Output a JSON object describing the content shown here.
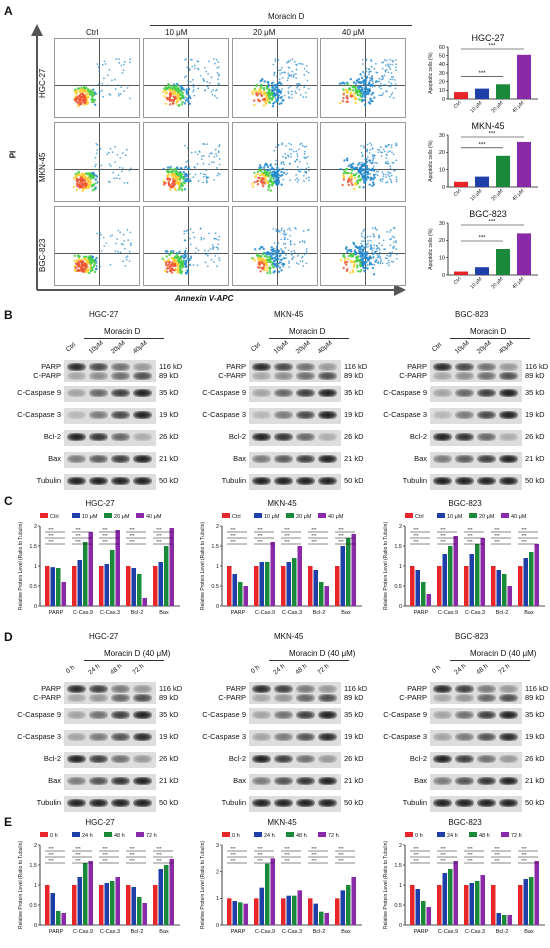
{
  "panels": {
    "A": "A",
    "B": "B",
    "C": "C",
    "D": "D",
    "E": "E"
  },
  "colors": {
    "ctrl": "#e8262a",
    "c10": "#1f3fa8",
    "c20": "#1a8a3a",
    "c40": "#8b2aa8"
  },
  "flow": {
    "treatment": "Moracin D",
    "columns": [
      "Ctrl",
      "10 μM",
      "20 μM",
      "40 μM"
    ],
    "rows": [
      "HGC-27",
      "MKN-45",
      "BGC-823"
    ],
    "yaxis": "PI",
    "xaxis": "Annexin V-APC"
  },
  "chart_data": [
    {
      "type": "bar",
      "title": "HGC-27",
      "ylabel": "Apoptotic cells (%)",
      "categories": [
        "Ctrl",
        "10 μM",
        "20 μM",
        "40 μM"
      ],
      "values": [
        8,
        12,
        17,
        51
      ],
      "ylim": [
        0,
        60
      ],
      "ticks": [
        0,
        10,
        20,
        30,
        40,
        50,
        60
      ],
      "sig": [
        "***",
        "***"
      ]
    },
    {
      "type": "bar",
      "title": "MKN-45",
      "ylabel": "Apoptotic cells (%)",
      "categories": [
        "Ctrl",
        "10 μM",
        "20 μM",
        "40 μM"
      ],
      "values": [
        3,
        6,
        18,
        26
      ],
      "ylim": [
        0,
        30
      ],
      "ticks": [
        0,
        10,
        20,
        30
      ],
      "sig": [
        "***",
        "***"
      ]
    },
    {
      "type": "bar",
      "title": "BGC-823",
      "ylabel": "Apoptotic cells (%)",
      "categories": [
        "Ctrl",
        "10 μM",
        "20 μM",
        "40 μM"
      ],
      "values": [
        2,
        4.5,
        15,
        24
      ],
      "ylim": [
        0,
        30
      ],
      "ticks": [
        0,
        10,
        20,
        30
      ],
      "sig": [
        "***",
        "***"
      ]
    },
    {
      "type": "bar",
      "title": "HGC-27",
      "ylabel": "Relative Protein Level (Ratio to Tubulin)",
      "legend": [
        "Ctrl",
        "10 μM",
        "20 μM",
        "40 μM"
      ],
      "categories": [
        "PARP",
        "C-Cas.9",
        "C-Cas.3",
        "Bcl-2",
        "Bax"
      ],
      "series": [
        [
          1,
          1,
          1,
          1,
          1
        ],
        [
          0.97,
          1.15,
          1.05,
          0.95,
          1.1
        ],
        [
          0.95,
          1.6,
          1.4,
          0.8,
          1.5
        ],
        [
          0.6,
          1.85,
          1.9,
          0.2,
          1.95
        ]
      ],
      "ylim": [
        0,
        2
      ],
      "ticks": [
        0,
        0.5,
        1,
        1.5,
        2
      ]
    },
    {
      "type": "bar",
      "title": "MKN-45",
      "ylabel": "Relative Protein Level (Ratio to Tubulin)",
      "legend": [
        "Ctrl",
        "10 μM",
        "20 μM",
        "40 μM"
      ],
      "categories": [
        "PARP",
        "C-Cas.9",
        "C-Cas.3",
        "Bcl-2",
        "Bax"
      ],
      "series": [
        [
          1,
          1,
          1,
          1,
          1
        ],
        [
          0.8,
          1.1,
          1.1,
          0.9,
          1.5
        ],
        [
          0.6,
          1.1,
          1.2,
          0.6,
          1.7
        ],
        [
          0.5,
          1.6,
          1.5,
          0.5,
          1.8
        ]
      ],
      "ylim": [
        0,
        2
      ],
      "ticks": [
        0,
        0.5,
        1,
        1.5,
        2
      ]
    },
    {
      "type": "bar",
      "title": "BGC-823",
      "ylabel": "Relative Protein Level (Ratio to Tubulin)",
      "legend": [
        "Ctrl",
        "10 μM",
        "20 μM",
        "40 μM"
      ],
      "categories": [
        "PARP",
        "C-Cas.9",
        "C-Cas.3",
        "Bcl-2",
        "Bax"
      ],
      "series": [
        [
          1,
          1,
          1,
          1,
          1
        ],
        [
          0.9,
          1.3,
          1.3,
          0.9,
          1.2
        ],
        [
          0.6,
          1.5,
          1.55,
          0.8,
          1.35
        ],
        [
          0.3,
          1.75,
          1.7,
          0.5,
          1.55
        ]
      ],
      "ylim": [
        0,
        2
      ],
      "ticks": [
        0,
        0.5,
        1,
        1.5,
        2
      ]
    },
    {
      "type": "bar",
      "title": "HGC-27",
      "ylabel": "Relative Protein Level (Ratio to Tubulin)",
      "legend": [
        "0 h",
        "24 h",
        "48 h",
        "72 h"
      ],
      "categories": [
        "PARP",
        "C-Cas.9",
        "C-Cas.3",
        "Bcl-2",
        "Bax"
      ],
      "series": [
        [
          1,
          1,
          1,
          1,
          1
        ],
        [
          0.8,
          1.2,
          1.05,
          0.95,
          1.4
        ],
        [
          0.35,
          1.55,
          1.1,
          0.7,
          1.5
        ],
        [
          0.3,
          1.6,
          1.2,
          0.55,
          1.65
        ]
      ],
      "ylim": [
        0,
        2
      ],
      "ticks": [
        0,
        0.5,
        1,
        1.5,
        2
      ]
    },
    {
      "type": "bar",
      "title": "MKN-45",
      "ylabel": "Relative Protein Level (Ratio to Tubulin)",
      "legend": [
        "0 h",
        "24 h",
        "48 h",
        "72 h"
      ],
      "categories": [
        "PARP",
        "C-Cas.9",
        "C-Cas.3",
        "Bcl-2",
        "Bax"
      ],
      "series": [
        [
          1,
          1,
          1,
          1,
          1
        ],
        [
          0.9,
          1.4,
          1.1,
          0.8,
          1.3
        ],
        [
          0.85,
          2.3,
          1.1,
          0.5,
          1.5
        ],
        [
          0.8,
          2.5,
          1.3,
          0.45,
          1.8
        ]
      ],
      "ylim": [
        0,
        3
      ],
      "ticks": [
        0,
        1,
        2,
        3
      ]
    },
    {
      "type": "bar",
      "title": "BGC-823",
      "ylabel": "Relative Protein Level (Ratio to Tubulin)",
      "legend": [
        "0 h",
        "24 h",
        "48 h",
        "72 h"
      ],
      "categories": [
        "PARP",
        "C-Cas.9",
        "C-Cas.3",
        "Bcl-2",
        "Bax"
      ],
      "series": [
        [
          1,
          1,
          1,
          1,
          1
        ],
        [
          0.9,
          1.3,
          1.05,
          0.3,
          1.15
        ],
        [
          0.6,
          1.4,
          1.1,
          0.25,
          1.2
        ],
        [
          0.45,
          1.6,
          1.25,
          0.25,
          1.6
        ]
      ],
      "ylim": [
        0,
        2
      ],
      "ticks": [
        0,
        0.5,
        1,
        1.5,
        2
      ]
    }
  ],
  "western": {
    "b_header": "Moracin D",
    "b_lanes": [
      "Ctrl",
      "10μM",
      "20μM",
      "40μM"
    ],
    "d_header": "Moracin D (40 μM)",
    "d_lanes": [
      "0 h",
      "24 h",
      "48 h",
      "72 h"
    ],
    "cells": [
      "HGC-27",
      "MKN-45",
      "BGC-823"
    ],
    "sizes": [
      "116 kD",
      "89 kD",
      "35 kD",
      "19 kD",
      "26 kD",
      "21 kD",
      "50 kD"
    ],
    "labels_hgc": [
      "PARP",
      "C-PARP",
      "C-Caspase 9",
      "C-Caspase 3",
      "Bcl-2",
      "Bax",
      "Tubulin"
    ],
    "labels_bgc": [
      "PARP",
      "C-PARP",
      "C-Caspase 9",
      "C-Caspase 3",
      "Bcl-2",
      "Bax",
      "Tubulin"
    ]
  }
}
